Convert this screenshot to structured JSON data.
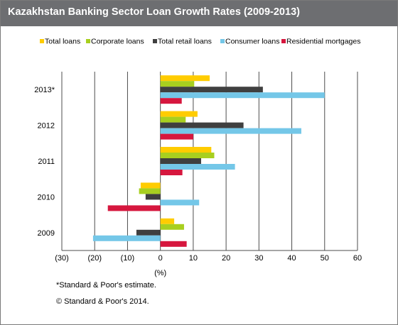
{
  "title": "Kazakhstan Banking Sector Loan Growth Rates (2009-2013)",
  "footnote": "*Standard & Poor's estimate.",
  "copyright": "© Standard & Poor's 2014.",
  "chart_data": {
    "type": "bar",
    "orientation": "horizontal",
    "title": "Kazakhstan Banking Sector Loan Growth Rates (2009-2013)",
    "xlabel": "(%)",
    "ylabel": "",
    "xlim": [
      -30,
      60
    ],
    "xticks": [
      -30,
      -20,
      -10,
      0,
      10,
      20,
      30,
      40,
      50,
      60
    ],
    "xtick_labels": [
      "(30)",
      "(20)",
      "(10)",
      "0",
      "10",
      "20",
      "30",
      "40",
      "50",
      "60"
    ],
    "vertical_grid": true,
    "legend_position": "top",
    "categories": [
      "2013*",
      "2012",
      "2011",
      "2010",
      "2009"
    ],
    "series": [
      {
        "name": "Total loans",
        "color": "#ffcc00",
        "values": [
          15.0,
          11.3,
          15.5,
          -6.0,
          4.2
        ]
      },
      {
        "name": "Corporate loans",
        "color": "#a8cf1f",
        "values": [
          10.3,
          7.7,
          16.4,
          -6.5,
          7.2
        ]
      },
      {
        "name": "Total retail loans",
        "color": "#3f3f3f",
        "values": [
          31.2,
          25.3,
          12.4,
          -4.5,
          -7.3
        ]
      },
      {
        "name": "Consumer loans",
        "color": "#74c7e8",
        "values": [
          50.0,
          42.9,
          22.7,
          11.8,
          -20.5
        ]
      },
      {
        "name": "Residential mortgages",
        "color": "#d6173e",
        "values": [
          6.5,
          10.0,
          6.7,
          -16.0,
          8.0
        ]
      }
    ]
  }
}
